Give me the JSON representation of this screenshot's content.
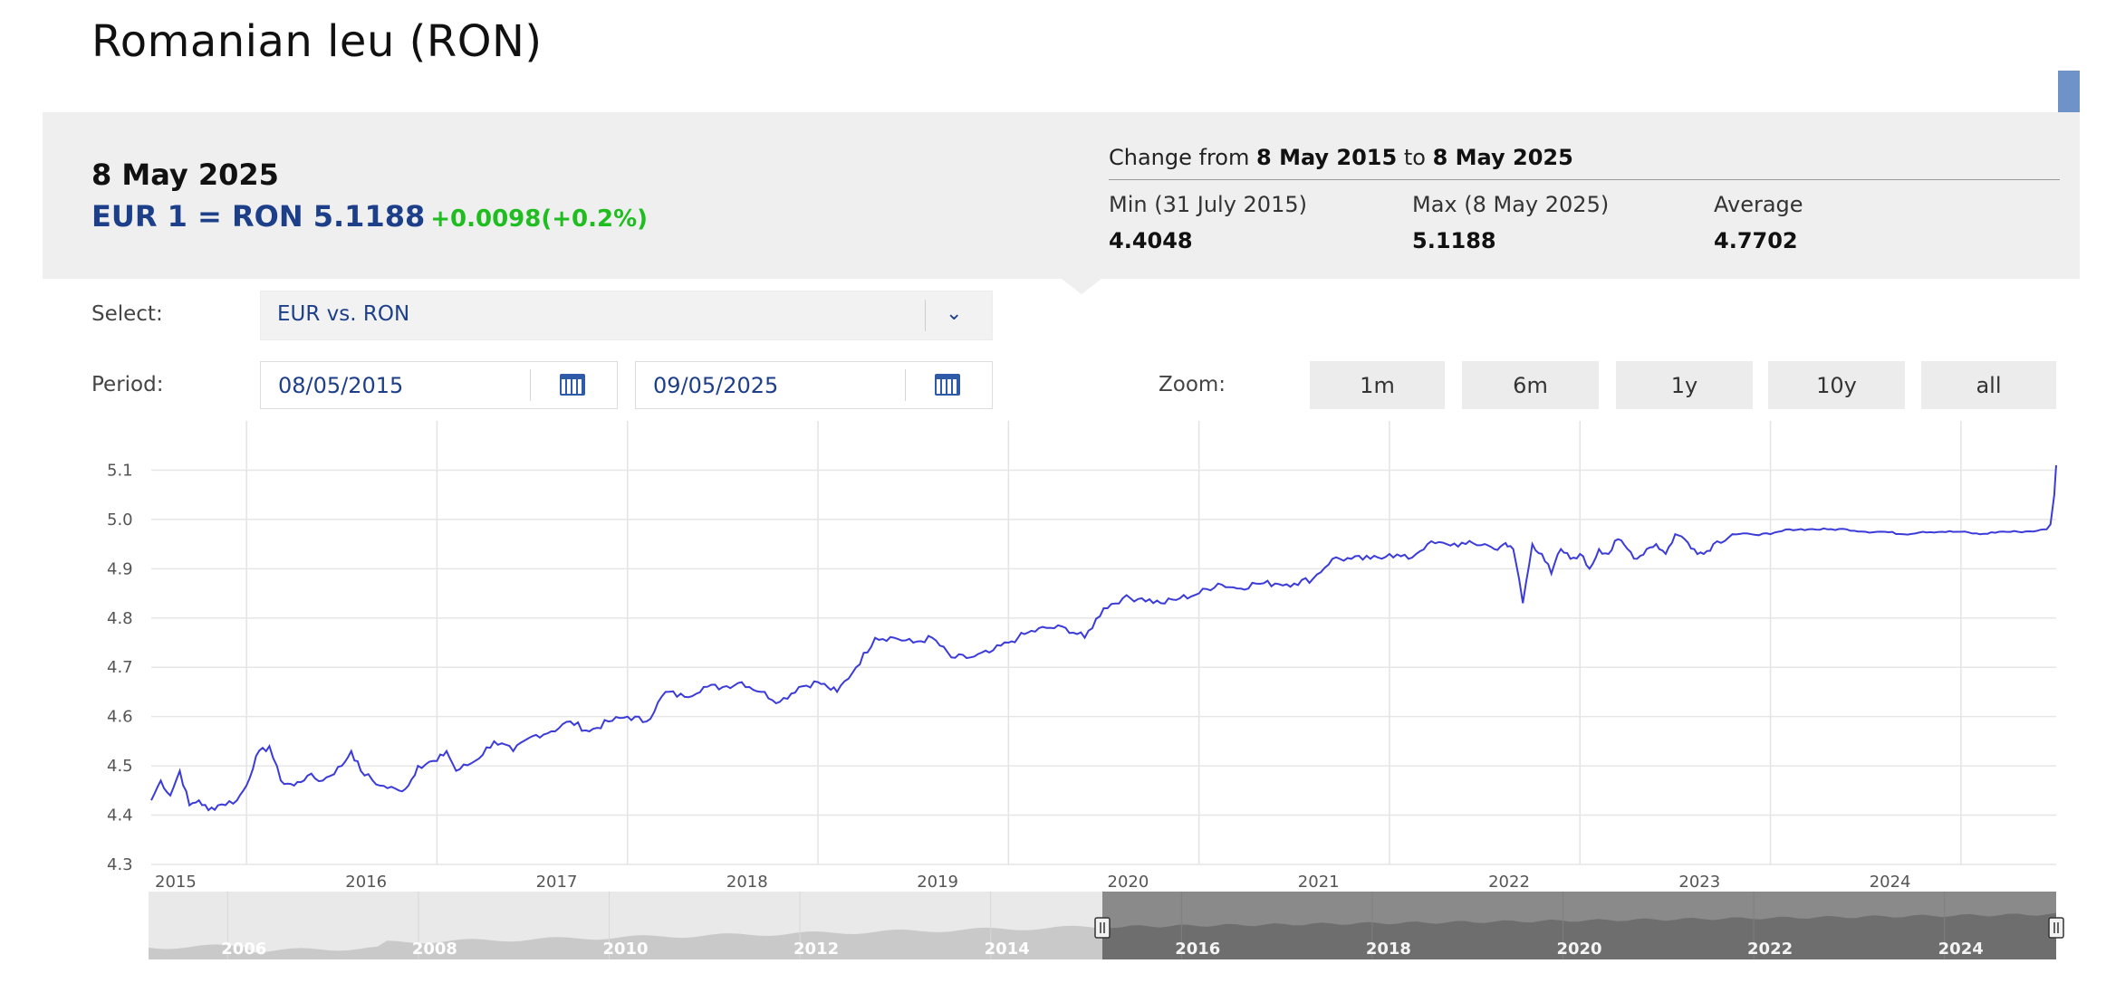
{
  "page": {
    "title": "Romanian leu (RON)"
  },
  "summary": {
    "date": "8 May 2025",
    "rate": "EUR 1 = RON 5.1188",
    "change": "+0.0098(+0.2%)",
    "change_from_prefix": "Change from",
    "change_from_start": "8 May 2015",
    "change_from_mid": "to",
    "change_from_end": "8 May 2025",
    "min_label": "Min (31 July 2015)",
    "min_value": "4.4048",
    "max_label": "Max (8 May 2025)",
    "max_value": "5.1188",
    "avg_label": "Average",
    "avg_value": "4.7702"
  },
  "controls": {
    "select_label": "Select:",
    "select_value": "EUR vs. RON",
    "period_label": "Period:",
    "start_date": "08/05/2015",
    "end_date": "09/05/2025",
    "zoom_label": "Zoom:",
    "zoom_options": [
      "1m",
      "6m",
      "1y",
      "10y",
      "all"
    ]
  },
  "colors": {
    "line": "#3b3bd9",
    "accent": "#1d3f8a",
    "positive": "#1fbd1f"
  },
  "chart_data": {
    "type": "line",
    "title": "",
    "xlabel": "",
    "ylabel": "",
    "x_range": [
      2015.0,
      2025.0
    ],
    "ylim": [
      4.3,
      5.2
    ],
    "y_ticks": [
      "4.3",
      "4.4",
      "4.5",
      "4.6",
      "4.7",
      "4.8",
      "4.9",
      "5.0",
      "5.1"
    ],
    "x_ticks": [
      "2015",
      "2016",
      "2017",
      "2018",
      "2019",
      "2020",
      "2021",
      "2022",
      "2023",
      "2024"
    ],
    "grid": true,
    "series": [
      {
        "x": [
          2015.0,
          2015.05,
          2015.1,
          2015.15,
          2015.2,
          2015.25,
          2015.3,
          2015.35,
          2015.45,
          2015.5,
          2015.55,
          2015.62,
          2015.68,
          2015.75,
          2015.82,
          2015.9,
          2016.0,
          2016.05,
          2016.1,
          2016.2,
          2016.3,
          2016.35,
          2016.4,
          2016.5,
          2016.55,
          2016.6,
          2016.7,
          2016.8,
          2016.9,
          2017.0,
          2017.1,
          2017.2,
          2017.3,
          2017.4,
          2017.5,
          2017.6,
          2017.7,
          2017.8,
          2017.9,
          2018.0,
          2018.1,
          2018.2,
          2018.3,
          2018.4,
          2018.5,
          2018.55,
          2018.6,
          2018.7,
          2018.8,
          2018.9,
          2019.0,
          2019.1,
          2019.2,
          2019.3,
          2019.4,
          2019.5,
          2019.55,
          2019.6,
          2019.7,
          2019.8,
          2019.9,
          2020.0,
          2020.1,
          2020.2,
          2020.3,
          2020.4,
          2020.5,
          2020.6,
          2020.7,
          2020.8,
          2020.9,
          2021.0,
          2021.1,
          2021.2,
          2021.3,
          2021.4,
          2021.5,
          2021.6,
          2021.7,
          2021.8,
          2021.9,
          2022.0,
          2022.05,
          2022.1,
          2022.12,
          2022.15,
          2022.18,
          2022.2,
          2022.25,
          2022.3,
          2022.35,
          2022.4,
          2022.45,
          2022.5,
          2022.55,
          2022.6,
          2022.65,
          2022.7,
          2022.75,
          2022.8,
          2022.85,
          2022.9,
          2022.95,
          2023.0,
          2023.05,
          2023.1,
          2023.15,
          2023.2,
          2023.3,
          2023.4,
          2023.5,
          2023.6,
          2023.7,
          2023.8,
          2023.9,
          2024.0,
          2024.1,
          2024.2,
          2024.3,
          2024.4,
          2024.5,
          2024.6,
          2024.7,
          2024.8,
          2024.9,
          2024.95,
          2024.97,
          2024.99,
          2025.0
        ],
        "values": [
          4.43,
          4.47,
          4.44,
          4.49,
          4.42,
          4.43,
          4.41,
          4.42,
          4.43,
          4.46,
          4.52,
          4.54,
          4.47,
          4.46,
          4.48,
          4.47,
          4.5,
          4.53,
          4.49,
          4.46,
          4.45,
          4.46,
          4.5,
          4.51,
          4.53,
          4.49,
          4.51,
          4.55,
          4.53,
          4.56,
          4.57,
          4.59,
          4.57,
          4.59,
          4.6,
          4.59,
          4.65,
          4.64,
          4.66,
          4.66,
          4.67,
          4.65,
          4.63,
          4.66,
          4.67,
          4.66,
          4.65,
          4.7,
          4.76,
          4.76,
          4.75,
          4.76,
          4.72,
          4.72,
          4.73,
          4.75,
          4.76,
          4.77,
          4.78,
          4.78,
          4.76,
          4.82,
          4.84,
          4.84,
          4.83,
          4.84,
          4.85,
          4.87,
          4.86,
          4.87,
          4.87,
          4.87,
          4.88,
          4.92,
          4.92,
          4.92,
          4.93,
          4.92,
          4.95,
          4.95,
          4.95,
          4.95,
          4.94,
          4.95,
          4.945,
          4.94,
          4.88,
          4.83,
          4.95,
          4.93,
          4.89,
          4.94,
          4.92,
          4.93,
          4.9,
          4.94,
          4.93,
          4.96,
          4.94,
          4.92,
          4.94,
          4.95,
          4.93,
          4.97,
          4.96,
          4.94,
          4.93,
          4.95,
          4.97,
          4.97,
          4.97,
          4.98,
          4.98,
          4.98,
          4.98,
          4.975,
          4.975,
          4.97,
          4.975,
          4.975,
          4.975,
          4.97,
          4.975,
          4.975,
          4.977,
          4.98,
          4.99,
          5.05,
          5.11
        ]
      }
    ],
    "navigator": {
      "x_ticks": [
        "2006",
        "2008",
        "2010",
        "2012",
        "2014",
        "2016",
        "2018",
        "2020",
        "2022",
        "2024"
      ],
      "selected_from": 2015.0,
      "selected_to": 2025.0
    }
  }
}
